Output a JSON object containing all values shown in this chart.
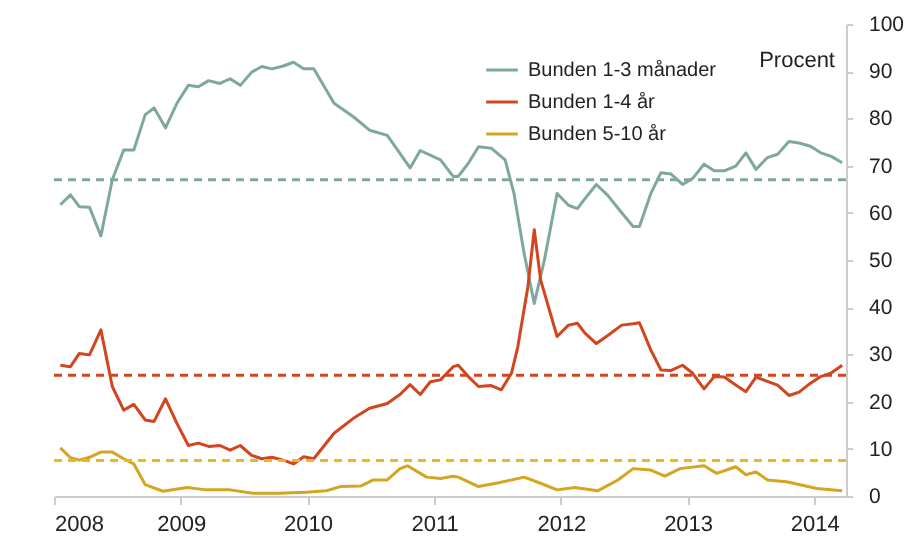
{
  "chart_data": {
    "type": "line",
    "ylabel": "Procent",
    "xlim": [
      2008,
      2014.25
    ],
    "xticks": [
      2008,
      2009,
      2010,
      2011,
      2012,
      2013,
      2014
    ],
    "ylim": [
      0,
      100
    ],
    "yticks": [
      0,
      10,
      20,
      30,
      40,
      50,
      60,
      70,
      80,
      90,
      100
    ],
    "grid": false,
    "legend": "top",
    "line_style": "solid",
    "marker": "none",
    "series": [
      {
        "name": "Bunden 1-3 månader",
        "color": "#7fa89c",
        "x": [
          2008.05,
          2008.13,
          2008.2,
          2008.28,
          2008.37,
          2008.46,
          2008.55,
          2008.63,
          2008.72,
          2008.79,
          2008.88,
          2008.97,
          2009.06,
          2009.14,
          2009.22,
          2009.31,
          2009.39,
          2009.47,
          2009.56,
          2009.64,
          2009.72,
          2009.81,
          2009.89,
          2009.97,
          2010.05,
          2010.21,
          2010.36,
          2010.49,
          2010.63,
          2010.73,
          2010.81,
          2010.89,
          2011.05,
          2011.15,
          2011.19,
          2011.27,
          2011.35,
          2011.45,
          2011.56,
          2011.63,
          2011.71,
          2011.79,
          2011.87,
          2011.97,
          2012.06,
          2012.13,
          2012.19,
          2012.28,
          2012.37,
          2012.48,
          2012.57,
          2012.62,
          2012.71,
          2012.79,
          2012.87,
          2012.96,
          2013.04,
          2013.13,
          2013.21,
          2013.29,
          2013.38,
          2013.46,
          2013.54,
          2013.63,
          2013.71,
          2013.8,
          2013.88,
          2013.97,
          2014.05,
          2014.13,
          2014.22
        ],
        "values": [
          61.7,
          63.8,
          61.3,
          61.2,
          55.1,
          67,
          73.3,
          73.3,
          80.8,
          82.2,
          78,
          83.2,
          87,
          86.7,
          88,
          87.4,
          88.4,
          87,
          89.8,
          91,
          90.5,
          91.1,
          91.9,
          90.5,
          90.5,
          83.2,
          80.4,
          77.5,
          76.4,
          72.6,
          69.5,
          73.2,
          71.2,
          67.7,
          67.7,
          70.5,
          74,
          73.7,
          71.2,
          64.1,
          51.4,
          40.8,
          50,
          64.1,
          61.6,
          60.9,
          63,
          66,
          63.7,
          60,
          57.1,
          57.1,
          64.1,
          68.5,
          68.2,
          66,
          67.3,
          70.3,
          68.9,
          68.9,
          69.9,
          72.7,
          69.2,
          71.7,
          72.4,
          75.1,
          74.8,
          74.1,
          72.7,
          72,
          70.6
        ]
      },
      {
        "name": "Bunden 1-4 år",
        "color": "#d2451e",
        "x": [
          2008.05,
          2008.13,
          2008.2,
          2008.28,
          2008.37,
          2008.46,
          2008.55,
          2008.63,
          2008.72,
          2008.79,
          2008.88,
          2008.97,
          2009.06,
          2009.14,
          2009.22,
          2009.31,
          2009.39,
          2009.47,
          2009.56,
          2009.64,
          2009.72,
          2009.81,
          2009.89,
          2009.97,
          2010.05,
          2010.21,
          2010.36,
          2010.49,
          2010.63,
          2010.73,
          2010.81,
          2010.89,
          2010.97,
          2011.05,
          2011.15,
          2011.19,
          2011.27,
          2011.35,
          2011.45,
          2011.53,
          2011.61,
          2011.66,
          2011.74,
          2011.79,
          2011.84,
          2011.97,
          2012.06,
          2012.13,
          2012.19,
          2012.28,
          2012.37,
          2012.48,
          2012.57,
          2012.62,
          2012.71,
          2012.79,
          2012.87,
          2012.96,
          2013.04,
          2013.13,
          2013.21,
          2013.29,
          2013.38,
          2013.46,
          2013.54,
          2013.63,
          2013.71,
          2013.8,
          2013.88,
          2013.97,
          2014.05,
          2014.13,
          2014.22
        ],
        "values": [
          27.7,
          27.4,
          30.2,
          29.9,
          35.2,
          23.2,
          18.2,
          19.4,
          16.1,
          15.8,
          20.6,
          15.4,
          10.7,
          11.2,
          10.5,
          10.7,
          9.7,
          10.7,
          8.6,
          7.9,
          8.2,
          7.6,
          6.8,
          8.3,
          7.9,
          13.3,
          16.4,
          18.6,
          19.6,
          21.5,
          23.6,
          21.5,
          24.2,
          24.6,
          27.4,
          27.7,
          25.3,
          23.2,
          23.4,
          22.5,
          26,
          31.6,
          44.4,
          56.4,
          45.8,
          33.8,
          36.2,
          36.6,
          34.5,
          32.3,
          34,
          36.2,
          36.5,
          36.7,
          30.9,
          26.7,
          26.6,
          27.7,
          26,
          22.7,
          25.3,
          25.2,
          23.5,
          22.1,
          25.2,
          24.3,
          23.5,
          21.3,
          22,
          23.9,
          25.3,
          26,
          27.7
        ]
      },
      {
        "name": "Bunden 5-10 år",
        "color": "#d4a520",
        "x": [
          2008.05,
          2008.13,
          2008.2,
          2008.28,
          2008.37,
          2008.46,
          2008.55,
          2008.63,
          2008.72,
          2008.86,
          2009.05,
          2009.2,
          2009.39,
          2009.57,
          2009.78,
          2009.99,
          2010.15,
          2010.26,
          2010.42,
          2010.52,
          2010.63,
          2010.73,
          2010.79,
          2010.94,
          2011.05,
          2011.15,
          2011.19,
          2011.35,
          2011.51,
          2011.71,
          2011.84,
          2011.97,
          2012.11,
          2012.29,
          2012.45,
          2012.57,
          2012.71,
          2012.82,
          2012.94,
          2013.13,
          2013.23,
          2013.38,
          2013.46,
          2013.54,
          2013.63,
          2013.78,
          2014.02,
          2014.22
        ],
        "values": [
          10.2,
          8.1,
          7.6,
          8.2,
          9.3,
          9.3,
          7.9,
          6.8,
          2.4,
          1,
          1.8,
          1.3,
          1.3,
          0.6,
          0.6,
          0.8,
          1.1,
          2,
          2.1,
          3.4,
          3.4,
          5.8,
          6.4,
          4,
          3.7,
          4.2,
          4,
          2,
          2.8,
          4,
          2.7,
          1.3,
          1.8,
          1.1,
          3.4,
          5.8,
          5.5,
          4.2,
          5.8,
          6.4,
          4.8,
          6.2,
          4.5,
          5.1,
          3.4,
          3,
          1.6,
          1.1
        ]
      }
    ],
    "ref_lines": [
      {
        "axis": "y",
        "value": 67,
        "label": null,
        "color": "#7fa89c",
        "line_style": "dashed"
      },
      {
        "axis": "y",
        "value": 25.6,
        "label": null,
        "color": "#d2451e",
        "line_style": "dashed"
      },
      {
        "axis": "y",
        "value": 7.5,
        "label": null,
        "color": "#e8b820",
        "line_style": "dashed"
      }
    ]
  }
}
